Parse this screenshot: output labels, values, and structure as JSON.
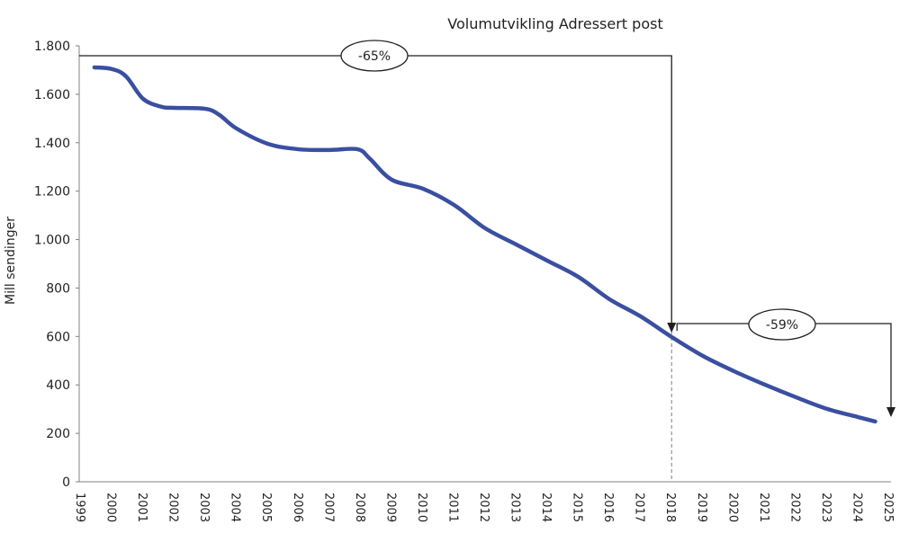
{
  "chart_data": {
    "type": "line",
    "title": "Volumutvikling Adressert post",
    "xlabel": "",
    "ylabel": "Mill sendinger",
    "xlim": [
      1999,
      2025
    ],
    "ylim": [
      0,
      1800
    ],
    "x_ticks": [
      "1999",
      "2000",
      "2001",
      "2002",
      "2003",
      "2004",
      "2005",
      "2006",
      "2007",
      "2008",
      "2009",
      "2010",
      "2011",
      "2012",
      "2013",
      "2014",
      "2015",
      "2016",
      "2017",
      "2018",
      "2019",
      "2020",
      "2021",
      "2022",
      "2023",
      "2024",
      "2025"
    ],
    "y_ticks": [
      {
        "value": 0,
        "label": "0"
      },
      {
        "value": 200,
        "label": "200"
      },
      {
        "value": 400,
        "label": "400"
      },
      {
        "value": 600,
        "label": "600"
      },
      {
        "value": 800,
        "label": "800"
      },
      {
        "value": 1000,
        "label": "1.000"
      },
      {
        "value": 1200,
        "label": "1.200"
      },
      {
        "value": 1400,
        "label": "1.400"
      },
      {
        "value": 1600,
        "label": "1.600"
      },
      {
        "value": 1800,
        "label": "1.800"
      }
    ],
    "grid": false,
    "line_color": "#3a4fa0",
    "series": [
      {
        "x": [
          1999.43,
          2000,
          2000.45,
          2001,
          2001.6,
          2002,
          2003,
          2003.45,
          2004,
          2005,
          2006,
          2007,
          2007.9,
          2008.3,
          2009,
          2010,
          2011,
          2012,
          2013,
          2014,
          2015,
          2016,
          2017,
          2018,
          2019,
          2020,
          2021,
          2022,
          2023,
          2024,
          2024.55
        ],
        "values": [
          1711,
          1704,
          1674,
          1581,
          1548,
          1544,
          1540,
          1515,
          1459,
          1396,
          1373,
          1370,
          1373,
          1333,
          1247,
          1210,
          1143,
          1047,
          980,
          913,
          846,
          754,
          683,
          598,
          520,
          457,
          401,
          349,
          301,
          267,
          249
        ]
      }
    ],
    "annotations": [
      {
        "label": "-65%",
        "from_x": 1999,
        "to_x": 2018
      },
      {
        "label": "-59%",
        "from_x": 2018,
        "to_x": 2025
      }
    ],
    "reference_line_x": 2018
  }
}
